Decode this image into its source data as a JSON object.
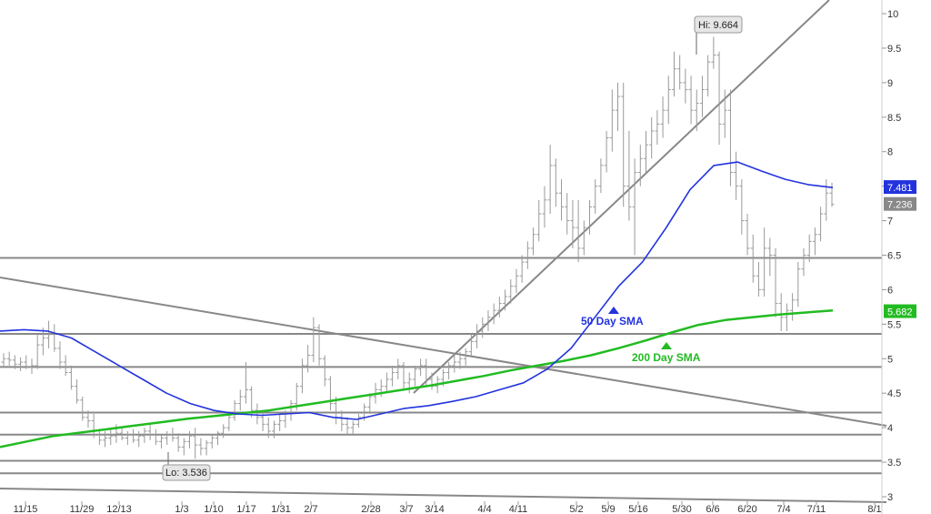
{
  "chart_data": {
    "type": "line",
    "x_ticks": [
      "11/15",
      "11/29",
      "12/13",
      "1/3",
      "1/10",
      "1/17",
      "1/31",
      "2/7",
      "2/28",
      "3/7",
      "3/14",
      "4/4",
      "4/11",
      "5/2",
      "5/9",
      "5/16",
      "5/30",
      "6/6",
      "6/20",
      "7/4",
      "7/11",
      "8/1"
    ],
    "y_ticks": [
      "10",
      "9.5",
      "9",
      "8.5",
      "8",
      "7.5",
      "7",
      "6.5",
      "6",
      "5.5",
      "5",
      "4.5",
      "4",
      "3.5",
      "3"
    ],
    "ylim": [
      3,
      10.2
    ],
    "series": [
      {
        "name": "50 Day SMA",
        "color": "#2233dd",
        "values": [
          5.4,
          5.42,
          5.4,
          5.3,
          5.1,
          4.9,
          4.7,
          4.5,
          4.35,
          4.25,
          4.2,
          4.18,
          4.2,
          4.22,
          4.15,
          4.12,
          4.2,
          4.28,
          4.32,
          4.38,
          4.45,
          4.55,
          4.65,
          4.85,
          5.15,
          5.6,
          6.05,
          6.4,
          6.9,
          7.45,
          7.8,
          7.85,
          7.72,
          7.6,
          7.52,
          7.48
        ]
      },
      {
        "name": "200 Day SMA",
        "color": "#22bb22",
        "values": [
          3.72,
          3.8,
          3.88,
          3.93,
          3.98,
          4.03,
          4.08,
          4.13,
          4.17,
          4.21,
          4.25,
          4.31,
          4.37,
          4.43,
          4.49,
          4.55,
          4.61,
          4.68,
          4.75,
          4.83,
          4.9,
          4.97,
          5.05,
          5.15,
          5.26,
          5.38,
          5.49,
          5.56,
          5.6,
          5.64,
          5.67,
          5.7
        ]
      }
    ],
    "price_ohlc": [
      [
        4.95,
        5.08,
        4.88,
        5.0
      ],
      [
        5.0,
        5.1,
        4.9,
        4.98
      ],
      [
        4.98,
        5.05,
        4.85,
        4.92
      ],
      [
        4.92,
        5.02,
        4.82,
        4.95
      ],
      [
        4.95,
        5.05,
        4.85,
        4.88
      ],
      [
        4.88,
        5.0,
        4.78,
        4.9
      ],
      [
        4.9,
        5.35,
        4.85,
        5.2
      ],
      [
        5.2,
        5.45,
        5.05,
        5.3
      ],
      [
        5.3,
        5.55,
        5.15,
        5.35
      ],
      [
        5.35,
        5.5,
        5.1,
        5.15
      ],
      [
        5.15,
        5.25,
        4.85,
        4.95
      ],
      [
        4.95,
        5.05,
        4.75,
        4.8
      ],
      [
        4.8,
        4.9,
        4.55,
        4.6
      ],
      [
        4.6,
        4.7,
        4.35,
        4.4
      ],
      [
        4.4,
        4.45,
        4.1,
        4.15
      ],
      [
        4.15,
        4.25,
        4.0,
        4.1
      ],
      [
        4.1,
        4.2,
        3.85,
        3.9
      ],
      [
        3.9,
        3.98,
        3.75,
        3.82
      ],
      [
        3.82,
        3.95,
        3.72,
        3.85
      ],
      [
        3.85,
        3.98,
        3.75,
        3.88
      ],
      [
        3.88,
        4.05,
        3.78,
        3.92
      ],
      [
        3.92,
        4.02,
        3.82,
        3.85
      ],
      [
        3.85,
        3.95,
        3.75,
        3.9
      ],
      [
        3.9,
        3.98,
        3.78,
        3.82
      ],
      [
        3.82,
        3.95,
        3.72,
        3.88
      ],
      [
        3.88,
        4.0,
        3.78,
        3.95
      ],
      [
        3.95,
        4.05,
        3.82,
        3.9
      ],
      [
        3.9,
        3.98,
        3.75,
        3.8
      ],
      [
        3.8,
        3.9,
        3.7,
        3.85
      ],
      [
        3.85,
        3.95,
        3.75,
        3.9
      ],
      [
        3.9,
        4.0,
        3.8,
        3.85
      ],
      [
        3.85,
        3.92,
        3.65,
        3.72
      ],
      [
        3.72,
        3.85,
        3.6,
        3.8
      ],
      [
        3.8,
        3.95,
        3.7,
        3.88
      ],
      [
        3.88,
        4.0,
        3.55,
        3.75
      ],
      [
        3.75,
        3.85,
        3.6,
        3.7
      ],
      [
        3.7,
        3.82,
        3.6,
        3.78
      ],
      [
        3.78,
        3.9,
        3.7,
        3.85
      ],
      [
        3.85,
        3.95,
        3.75,
        3.92
      ],
      [
        3.92,
        4.05,
        3.85,
        4.0
      ],
      [
        4.0,
        4.2,
        3.95,
        4.15
      ],
      [
        4.15,
        4.4,
        4.1,
        4.35
      ],
      [
        4.35,
        4.55,
        4.25,
        4.45
      ],
      [
        4.45,
        4.95,
        4.35,
        4.55
      ],
      [
        4.55,
        4.6,
        4.15,
        4.25
      ],
      [
        4.25,
        4.35,
        4.05,
        4.15
      ],
      [
        4.15,
        4.25,
        3.95,
        4.05
      ],
      [
        4.05,
        4.15,
        3.85,
        3.95
      ],
      [
        3.95,
        4.1,
        3.85,
        4.05
      ],
      [
        4.05,
        4.2,
        3.95,
        4.1
      ],
      [
        4.1,
        4.25,
        4.0,
        4.2
      ],
      [
        4.2,
        4.4,
        4.1,
        4.35
      ],
      [
        4.35,
        4.65,
        4.25,
        4.6
      ],
      [
        4.6,
        5.0,
        4.5,
        4.9
      ],
      [
        4.9,
        5.2,
        4.8,
        5.05
      ],
      [
        5.05,
        5.6,
        4.95,
        5.45
      ],
      [
        5.45,
        5.5,
        4.9,
        5.0
      ],
      [
        5.0,
        5.05,
        4.6,
        4.7
      ],
      [
        4.7,
        4.75,
        4.25,
        4.35
      ],
      [
        4.35,
        4.45,
        4.05,
        4.15
      ],
      [
        4.15,
        4.25,
        3.95,
        4.05
      ],
      [
        4.05,
        4.15,
        3.9,
        4.0
      ],
      [
        4.0,
        4.1,
        3.9,
        4.05
      ],
      [
        4.05,
        4.2,
        4.0,
        4.15
      ],
      [
        4.15,
        4.35,
        4.1,
        4.3
      ],
      [
        4.3,
        4.5,
        4.2,
        4.45
      ],
      [
        4.45,
        4.65,
        4.35,
        4.55
      ],
      [
        4.55,
        4.7,
        4.45,
        4.6
      ],
      [
        4.6,
        4.8,
        4.5,
        4.7
      ],
      [
        4.7,
        4.9,
        4.6,
        4.8
      ],
      [
        4.8,
        5.0,
        4.7,
        4.9
      ],
      [
        4.9,
        4.95,
        4.55,
        4.65
      ],
      [
        4.65,
        4.8,
        4.5,
        4.7
      ],
      [
        4.7,
        4.9,
        4.6,
        4.85
      ],
      [
        4.85,
        5.0,
        4.75,
        4.9
      ],
      [
        4.9,
        5.0,
        4.6,
        4.7
      ],
      [
        4.7,
        4.8,
        4.55,
        4.6
      ],
      [
        4.6,
        4.75,
        4.5,
        4.7
      ],
      [
        4.7,
        4.85,
        4.6,
        4.8
      ],
      [
        4.8,
        4.95,
        4.7,
        4.9
      ],
      [
        4.9,
        5.05,
        4.8,
        4.95
      ],
      [
        4.95,
        5.1,
        4.85,
        5.0
      ],
      [
        5.0,
        5.15,
        4.9,
        5.1
      ],
      [
        5.1,
        5.35,
        5.05,
        5.25
      ],
      [
        5.25,
        5.5,
        5.15,
        5.4
      ],
      [
        5.4,
        5.6,
        5.3,
        5.5
      ],
      [
        5.5,
        5.7,
        5.4,
        5.6
      ],
      [
        5.6,
        5.8,
        5.5,
        5.7
      ],
      [
        5.7,
        5.9,
        5.6,
        5.8
      ],
      [
        5.8,
        6.0,
        5.7,
        5.9
      ],
      [
        5.9,
        6.15,
        5.8,
        6.05
      ],
      [
        6.05,
        6.3,
        5.95,
        6.2
      ],
      [
        6.2,
        6.5,
        6.1,
        6.4
      ],
      [
        6.4,
        6.7,
        6.3,
        6.6
      ],
      [
        6.6,
        6.9,
        6.5,
        6.8
      ],
      [
        6.8,
        7.3,
        6.7,
        7.1
      ],
      [
        7.1,
        7.5,
        6.9,
        7.3
      ],
      [
        7.3,
        8.1,
        7.1,
        7.8
      ],
      [
        7.8,
        7.9,
        7.2,
        7.4
      ],
      [
        7.4,
        7.6,
        7.0,
        7.2
      ],
      [
        7.2,
        7.4,
        6.8,
        7.0
      ],
      [
        7.0,
        7.3,
        6.6,
        6.9
      ],
      [
        6.9,
        7.3,
        6.4,
        6.6
      ],
      [
        6.6,
        7.0,
        6.5,
        6.9
      ],
      [
        6.9,
        7.3,
        6.8,
        7.2
      ],
      [
        7.2,
        7.6,
        7.1,
        7.5
      ],
      [
        7.5,
        7.9,
        7.4,
        7.8
      ],
      [
        7.8,
        8.3,
        7.7,
        8.2
      ],
      [
        8.2,
        8.9,
        8.0,
        8.6
      ],
      [
        8.6,
        9.0,
        8.3,
        8.8
      ],
      [
        8.8,
        9.0,
        7.2,
        7.5
      ],
      [
        7.5,
        8.3,
        7.0,
        7.2
      ],
      [
        7.2,
        7.9,
        6.5,
        7.7
      ],
      [
        7.7,
        8.1,
        7.5,
        7.9
      ],
      [
        7.9,
        8.3,
        7.7,
        8.1
      ],
      [
        8.1,
        8.5,
        7.9,
        8.3
      ],
      [
        8.3,
        8.6,
        8.1,
        8.4
      ],
      [
        8.4,
        8.8,
        8.2,
        8.6
      ],
      [
        8.6,
        9.1,
        8.4,
        8.9
      ],
      [
        8.9,
        9.45,
        8.8,
        9.2
      ],
      [
        9.2,
        9.4,
        8.9,
        9.0
      ],
      [
        9.0,
        9.2,
        8.7,
        8.9
      ],
      [
        8.9,
        9.1,
        8.4,
        8.6
      ],
      [
        8.6,
        8.9,
        8.3,
        8.7
      ],
      [
        8.7,
        9.1,
        8.5,
        8.9
      ],
      [
        8.9,
        9.4,
        8.8,
        9.3
      ],
      [
        9.3,
        9.664,
        9.2,
        9.4
      ],
      [
        9.4,
        9.45,
        8.1,
        8.4
      ],
      [
        8.4,
        8.9,
        8.2,
        8.6
      ],
      [
        8.6,
        8.9,
        7.5,
        7.7
      ],
      [
        7.7,
        8.0,
        7.3,
        7.5
      ],
      [
        7.5,
        7.6,
        6.8,
        7.0
      ],
      [
        7.0,
        7.1,
        6.5,
        6.6
      ],
      [
        6.6,
        6.8,
        6.1,
        6.2
      ],
      [
        6.2,
        6.4,
        5.9,
        6.0
      ],
      [
        6.0,
        6.9,
        5.9,
        6.6
      ],
      [
        6.6,
        6.75,
        6.2,
        6.5
      ],
      [
        6.5,
        6.6,
        5.6,
        5.8
      ],
      [
        5.8,
        5.95,
        5.4,
        5.6
      ],
      [
        5.6,
        5.8,
        5.4,
        5.7
      ],
      [
        5.7,
        5.95,
        5.55,
        5.85
      ],
      [
        5.85,
        6.4,
        5.75,
        6.3
      ],
      [
        6.3,
        6.6,
        6.2,
        6.5
      ],
      [
        6.5,
        6.8,
        6.4,
        6.7
      ],
      [
        6.7,
        6.9,
        6.5,
        6.8
      ],
      [
        6.8,
        7.2,
        6.7,
        7.1
      ],
      [
        7.1,
        7.6,
        7.0,
        7.4
      ],
      [
        7.4,
        7.55,
        7.2,
        7.236
      ]
    ],
    "levels": [
      6.46,
      5.36,
      4.88,
      4.22,
      3.9,
      3.52,
      3.34
    ],
    "labels": {
      "hi": "Hi: 9.664",
      "lo": "Lo: 3.536",
      "sma50_label": "50 Day SMA",
      "sma200_label": "200 Day SMA",
      "tag_sma50": "7.481",
      "tag_last": "7.236",
      "tag_sma200": "5.682"
    },
    "colors": {
      "sma50": "#2233dd",
      "sma200": "#22bb22",
      "bars": "#999999",
      "lines": "#888888",
      "last_tag": "#888888"
    }
  }
}
